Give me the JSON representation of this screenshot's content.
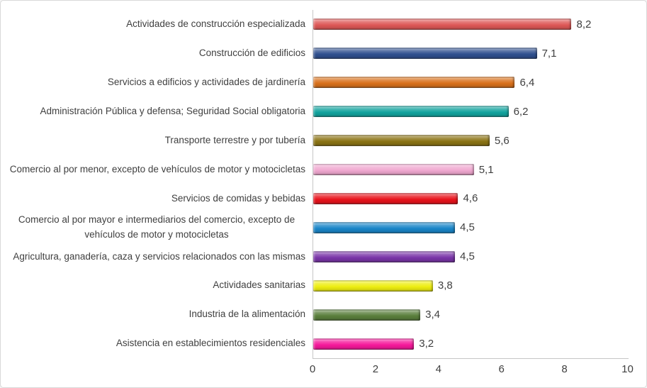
{
  "figure": {
    "background": "#ffffff",
    "border_color": "#d8d8d8",
    "text_color": "#3f3f3f",
    "axis_line_color": "#c6c6c6"
  },
  "chart_data": {
    "type": "bar",
    "orientation": "horizontal",
    "title": "",
    "xlabel": "",
    "ylabel": "",
    "grid": false,
    "legend": "none",
    "value_label_position": "outside-end",
    "decimal_separator": ",",
    "categories": [
      "Actividades de construcción especializada",
      "Construcción de edificios",
      "Servicios a edificios y actividades de jardinería",
      "Administración Pública y defensa; Seguridad Social obligatoria",
      "Transporte terrestre y por tubería",
      "Comercio al por menor, excepto de vehículos de motor y motocicletas",
      "Servicios de comidas y bebidas",
      "Comercio al por mayor e intermediarios del comercio, excepto de vehículos de motor y motocicletas",
      "Agricultura, ganadería, caza y servicios relacionados con las mismas",
      "Actividades sanitarias",
      "Industria de la alimentación",
      "Asistencia en establecimientos residenciales"
    ],
    "values": [
      8.2,
      7.1,
      6.4,
      6.2,
      5.6,
      5.1,
      4.6,
      4.5,
      4.5,
      3.8,
      3.4,
      3.2
    ],
    "value_labels": [
      "8,2",
      "7,1",
      "6,4",
      "6,2",
      "5,6",
      "5,1",
      "4,6",
      "4,5",
      "4,5",
      "3,8",
      "3,4",
      "3,2"
    ],
    "bar_colors": [
      "#de5857",
      "#30508f",
      "#d9711c",
      "#12a39e",
      "#8b7314",
      "#f0a8d0",
      "#e8131c",
      "#1985c8",
      "#7a35a8",
      "#eeee10",
      "#5a7f3c",
      "#f5199b"
    ],
    "xlim": [
      0,
      10
    ],
    "x_ticks": [
      0,
      2,
      4,
      6,
      8,
      10
    ],
    "x_tick_labels": [
      "0",
      "2",
      "4",
      "6",
      "8",
      "10"
    ]
  }
}
